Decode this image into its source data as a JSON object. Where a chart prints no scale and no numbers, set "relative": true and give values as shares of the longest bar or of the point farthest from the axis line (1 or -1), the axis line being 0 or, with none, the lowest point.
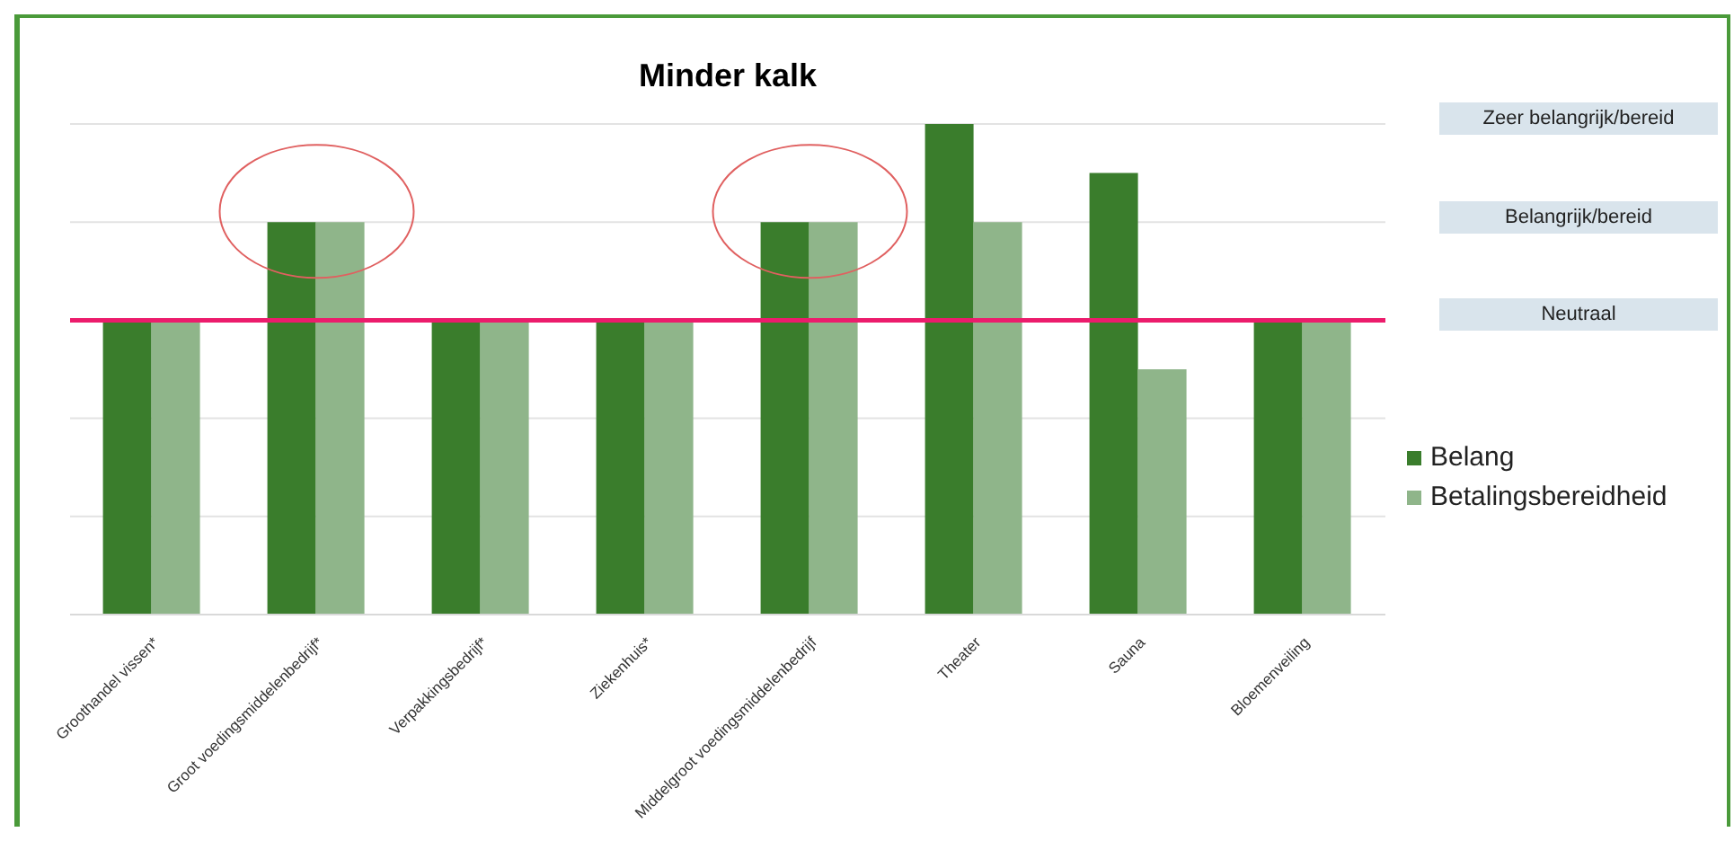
{
  "chart_data": {
    "type": "bar",
    "title": "Minder kalk",
    "categories": [
      "Groothandel vissen*",
      "Groot voedingsmiddelenbedrijf*",
      "Verpakkingsbedrijf*",
      "Ziekenhuis*",
      "Middelgroot voedingsmiddelenbedrijf",
      "Theater",
      "Sauna",
      "Bloemenveiling"
    ],
    "series": [
      {
        "name": "Belang",
        "color": "#3a7d2c",
        "values": [
          0.6,
          0.8,
          0.6,
          0.6,
          0.8,
          1,
          0.9,
          0.6
        ]
      },
      {
        "name": "Betalingsbereidheid",
        "color": "#8fb58a",
        "values": [
          0.6,
          0.8,
          0.6,
          0.6,
          0.8,
          0.8,
          0.5,
          0.6
        ]
      }
    ],
    "relative": true,
    "annotations": [
      "Zeer belangrijk/bereid",
      "Belangrijk/bereid",
      "Neutraal"
    ],
    "ref_lines": [
      {
        "axis": "y",
        "value": 0.6,
        "color": "#ec1c6c"
      }
    ],
    "grid": "y",
    "legend": "right"
  }
}
